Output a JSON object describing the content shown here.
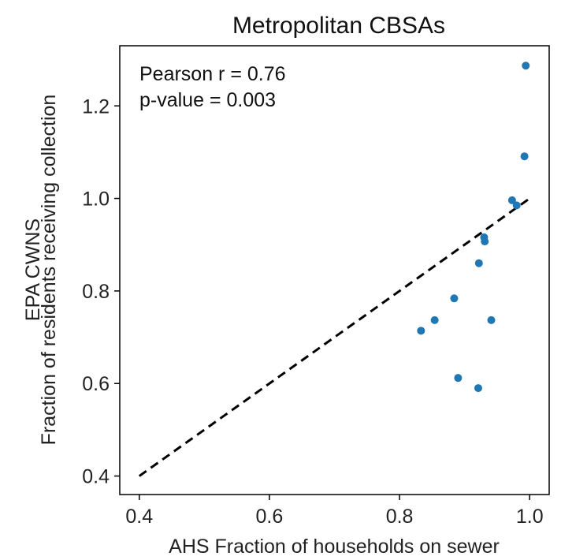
{
  "chart_data": {
    "type": "scatter",
    "title": "Metropolitan CBSAs",
    "xlabel": "AHS Fraction of households on sewer",
    "ylabel_lines": [
      "EPA CWNS",
      "Fraction of residents receiving collection"
    ],
    "xlim": [
      0.37,
      1.03
    ],
    "ylim": [
      0.36,
      1.33
    ],
    "xticks": [
      0.4,
      0.6,
      0.8,
      1.0
    ],
    "xtick_labels": [
      "0.4",
      "0.6",
      "0.8",
      "1.0"
    ],
    "yticks": [
      0.4,
      0.6,
      0.8,
      1.0,
      1.2
    ],
    "ytick_labels": [
      "0.4",
      "0.6",
      "0.8",
      "1.0",
      "1.2"
    ],
    "annotations": [
      "Pearson r = 0.76",
      "p-value = 0.003"
    ],
    "reference_line": {
      "style": "dashed",
      "color": "#000000",
      "from": [
        0.4,
        0.4
      ],
      "to": [
        1.0,
        1.0
      ]
    },
    "grid": false,
    "point_color": "#1f77b4",
    "points": [
      {
        "x": 0.994,
        "y": 1.287
      },
      {
        "x": 0.992,
        "y": 1.091
      },
      {
        "x": 0.973,
        "y": 0.996
      },
      {
        "x": 0.98,
        "y": 0.985
      },
      {
        "x": 0.93,
        "y": 0.916
      },
      {
        "x": 0.931,
        "y": 0.907
      },
      {
        "x": 0.922,
        "y": 0.86
      },
      {
        "x": 0.884,
        "y": 0.784
      },
      {
        "x": 0.854,
        "y": 0.737
      },
      {
        "x": 0.941,
        "y": 0.737
      },
      {
        "x": 0.833,
        "y": 0.714
      },
      {
        "x": 0.89,
        "y": 0.612
      },
      {
        "x": 0.921,
        "y": 0.59
      }
    ]
  }
}
